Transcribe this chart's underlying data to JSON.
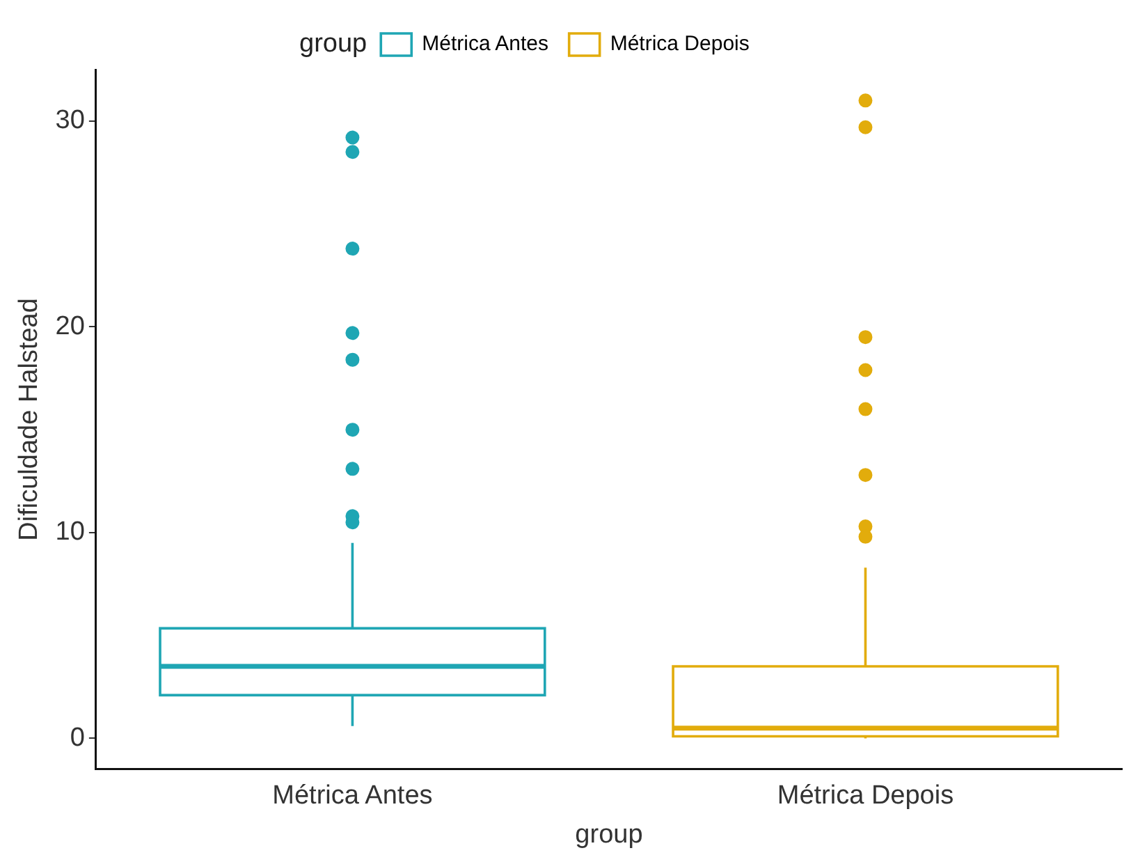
{
  "chart_data": {
    "type": "box",
    "xlabel": "group",
    "ylabel": "Dificuldade Halstead",
    "legend_title": "group",
    "legend": "top",
    "categories": [
      "Métrica Antes",
      "Métrica Depois"
    ],
    "series": [
      {
        "name": "Métrica Antes",
        "color": "#1fa6b4",
        "boxes": [
          {
            "low": 0.6,
            "q1": 2.1,
            "median": 3.5,
            "q3": 5.35,
            "high": 9.5,
            "outliers": [
              29.2,
              28.5,
              23.8,
              19.7,
              18.4,
              15.0,
              13.1,
              10.8,
              10.5
            ]
          },
          null
        ]
      },
      {
        "name": "Métrica Depois",
        "color": "#e2ac0c",
        "boxes": [
          null,
          {
            "low": 0,
            "q1": 0.1,
            "median": 0.5,
            "q3": 3.5,
            "high": 8.3,
            "outliers": [
              31.0,
              29.7,
              19.5,
              17.9,
              16.0,
              12.8,
              10.3,
              9.8
            ]
          }
        ]
      }
    ],
    "ylim": [
      -1.5,
      32.5
    ],
    "yticks": [
      0,
      10,
      20,
      30
    ],
    "grid": false
  }
}
